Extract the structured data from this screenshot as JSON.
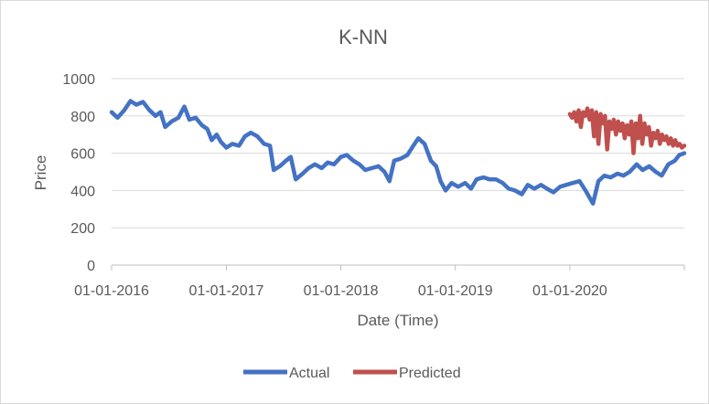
{
  "chart_data": {
    "type": "line",
    "title": "K-NN",
    "xlabel": "Date (Time)",
    "ylabel": "Price",
    "ylim": [
      0,
      1000
    ],
    "y_ticks": [
      "0",
      "200",
      "400",
      "600",
      "800",
      "1000"
    ],
    "x_ticks": [
      "01-01-2016",
      "01-01-2017",
      "01-01-2018",
      "01-01-2019",
      "01-01-2020"
    ],
    "x_tick_dates": [
      "2016-01-01",
      "2017-01-01",
      "2018-01-01",
      "2019-01-01",
      "2020-01-01"
    ],
    "xlim": [
      "2016-01-01",
      "2020-12-31"
    ],
    "grid": true,
    "legend": "bottom",
    "series": [
      {
        "name": "Actual",
        "color": "#4472C4",
        "points": [
          [
            "2016-01-01",
            820
          ],
          [
            "2016-01-20",
            790
          ],
          [
            "2016-02-10",
            830
          ],
          [
            "2016-03-01",
            880
          ],
          [
            "2016-03-20",
            860
          ],
          [
            "2016-04-10",
            875
          ],
          [
            "2016-05-01",
            830
          ],
          [
            "2016-05-20",
            800
          ],
          [
            "2016-06-05",
            820
          ],
          [
            "2016-06-20",
            740
          ],
          [
            "2016-07-10",
            770
          ],
          [
            "2016-08-01",
            790
          ],
          [
            "2016-08-20",
            850
          ],
          [
            "2016-09-05",
            780
          ],
          [
            "2016-09-25",
            790
          ],
          [
            "2016-10-15",
            750
          ],
          [
            "2016-11-01",
            730
          ],
          [
            "2016-11-15",
            670
          ],
          [
            "2016-12-01",
            700
          ],
          [
            "2016-12-15",
            660
          ],
          [
            "2017-01-01",
            630
          ],
          [
            "2017-01-20",
            650
          ],
          [
            "2017-02-10",
            640
          ],
          [
            "2017-03-01",
            690
          ],
          [
            "2017-03-20",
            710
          ],
          [
            "2017-04-10",
            690
          ],
          [
            "2017-05-01",
            650
          ],
          [
            "2017-05-20",
            640
          ],
          [
            "2017-06-01",
            510
          ],
          [
            "2017-06-20",
            530
          ],
          [
            "2017-07-10",
            560
          ],
          [
            "2017-07-25",
            580
          ],
          [
            "2017-08-10",
            460
          ],
          [
            "2017-09-01",
            490
          ],
          [
            "2017-09-20",
            520
          ],
          [
            "2017-10-10",
            540
          ],
          [
            "2017-11-01",
            520
          ],
          [
            "2017-11-20",
            550
          ],
          [
            "2017-12-10",
            540
          ],
          [
            "2018-01-01",
            580
          ],
          [
            "2018-01-20",
            590
          ],
          [
            "2018-02-10",
            560
          ],
          [
            "2018-03-01",
            540
          ],
          [
            "2018-03-20",
            510
          ],
          [
            "2018-04-10",
            520
          ],
          [
            "2018-05-01",
            530
          ],
          [
            "2018-05-20",
            500
          ],
          [
            "2018-06-05",
            450
          ],
          [
            "2018-06-20",
            560
          ],
          [
            "2018-07-10",
            570
          ],
          [
            "2018-08-01",
            590
          ],
          [
            "2018-08-20",
            640
          ],
          [
            "2018-09-05",
            680
          ],
          [
            "2018-09-25",
            650
          ],
          [
            "2018-10-15",
            560
          ],
          [
            "2018-11-01",
            530
          ],
          [
            "2018-11-15",
            450
          ],
          [
            "2018-12-01",
            400
          ],
          [
            "2018-12-20",
            440
          ],
          [
            "2019-01-10",
            420
          ],
          [
            "2019-02-01",
            440
          ],
          [
            "2019-02-20",
            410
          ],
          [
            "2019-03-10",
            460
          ],
          [
            "2019-04-01",
            470
          ],
          [
            "2019-04-20",
            460
          ],
          [
            "2019-05-10",
            460
          ],
          [
            "2019-06-01",
            440
          ],
          [
            "2019-06-20",
            410
          ],
          [
            "2019-07-10",
            400
          ],
          [
            "2019-08-01",
            380
          ],
          [
            "2019-08-20",
            430
          ],
          [
            "2019-09-10",
            410
          ],
          [
            "2019-10-01",
            430
          ],
          [
            "2019-10-20",
            410
          ],
          [
            "2019-11-10",
            390
          ],
          [
            "2019-12-01",
            420
          ],
          [
            "2019-12-20",
            430
          ],
          [
            "2020-01-10",
            440
          ],
          [
            "2020-02-01",
            450
          ],
          [
            "2020-02-20",
            400
          ],
          [
            "2020-03-15",
            330
          ],
          [
            "2020-04-01",
            450
          ],
          [
            "2020-04-20",
            480
          ],
          [
            "2020-05-10",
            470
          ],
          [
            "2020-06-01",
            490
          ],
          [
            "2020-06-20",
            480
          ],
          [
            "2020-07-10",
            500
          ],
          [
            "2020-08-01",
            540
          ],
          [
            "2020-08-20",
            510
          ],
          [
            "2020-09-10",
            530
          ],
          [
            "2020-10-01",
            500
          ],
          [
            "2020-10-20",
            480
          ],
          [
            "2020-11-10",
            540
          ],
          [
            "2020-12-01",
            560
          ],
          [
            "2020-12-15",
            590
          ],
          [
            "2020-12-31",
            600
          ]
        ]
      },
      {
        "name": "Predicted",
        "color": "#C0504D",
        "points": [
          [
            "2020-01-01",
            810
          ],
          [
            "2020-01-08",
            790
          ],
          [
            "2020-01-15",
            820
          ],
          [
            "2020-01-22",
            770
          ],
          [
            "2020-01-29",
            830
          ],
          [
            "2020-02-05",
            740
          ],
          [
            "2020-02-12",
            820
          ],
          [
            "2020-02-19",
            800
          ],
          [
            "2020-02-26",
            840
          ],
          [
            "2020-03-04",
            780
          ],
          [
            "2020-03-11",
            830
          ],
          [
            "2020-03-18",
            690
          ],
          [
            "2020-03-25",
            820
          ],
          [
            "2020-04-01",
            650
          ],
          [
            "2020-04-08",
            810
          ],
          [
            "2020-04-15",
            760
          ],
          [
            "2020-04-22",
            800
          ],
          [
            "2020-04-29",
            620
          ],
          [
            "2020-05-06",
            770
          ],
          [
            "2020-05-13",
            730
          ],
          [
            "2020-05-20",
            780
          ],
          [
            "2020-05-27",
            700
          ],
          [
            "2020-06-03",
            770
          ],
          [
            "2020-06-10",
            720
          ],
          [
            "2020-06-17",
            760
          ],
          [
            "2020-06-24",
            680
          ],
          [
            "2020-07-01",
            750
          ],
          [
            "2020-07-08",
            700
          ],
          [
            "2020-07-15",
            770
          ],
          [
            "2020-07-22",
            600
          ],
          [
            "2020-07-29",
            760
          ],
          [
            "2020-08-05",
            680
          ],
          [
            "2020-08-12",
            800
          ],
          [
            "2020-08-19",
            650
          ],
          [
            "2020-08-26",
            760
          ],
          [
            "2020-09-02",
            700
          ],
          [
            "2020-09-09",
            740
          ],
          [
            "2020-09-16",
            640
          ],
          [
            "2020-09-23",
            710
          ],
          [
            "2020-09-30",
            680
          ],
          [
            "2020-10-07",
            720
          ],
          [
            "2020-10-14",
            650
          ],
          [
            "2020-10-21",
            700
          ],
          [
            "2020-10-28",
            670
          ],
          [
            "2020-11-04",
            690
          ],
          [
            "2020-11-11",
            650
          ],
          [
            "2020-11-18",
            680
          ],
          [
            "2020-11-25",
            640
          ],
          [
            "2020-12-02",
            670
          ],
          [
            "2020-12-09",
            640
          ],
          [
            "2020-12-16",
            650
          ],
          [
            "2020-12-23",
            630
          ],
          [
            "2020-12-31",
            640
          ]
        ]
      }
    ]
  }
}
